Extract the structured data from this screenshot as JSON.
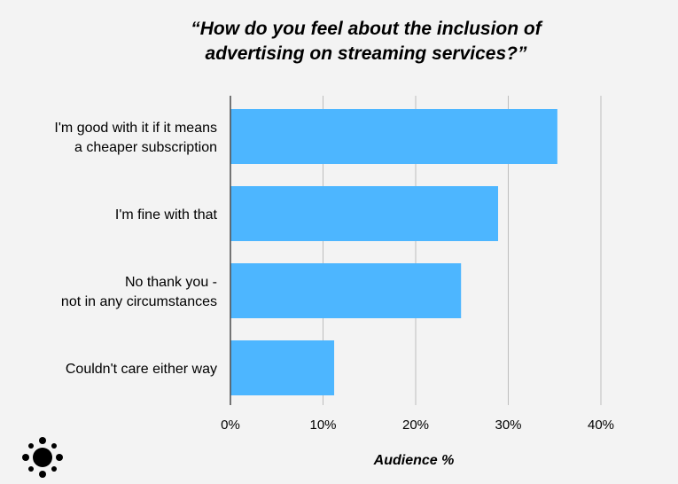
{
  "chart_data": {
    "type": "bar",
    "orientation": "horizontal",
    "title_lines": [
      "“How do you feel about the inclusion of",
      "advertising on streaming services?”"
    ],
    "categories": [
      [
        "I'm good with it if it means",
        "a cheaper subscription"
      ],
      [
        "I'm fine with that"
      ],
      [
        "No thank you -",
        "not in any circumstances"
      ],
      [
        "Couldn't care either way"
      ]
    ],
    "values": [
      35.3,
      28.9,
      24.9,
      11.2
    ],
    "xlabel": "Audience %",
    "xlim": [
      0,
      40
    ],
    "xticks": [
      "0%",
      "10%",
      "20%",
      "30%",
      "40%"
    ],
    "grid": true,
    "bar_color": "#4db6ff",
    "grid_color": "#bdbdbd"
  },
  "logo": {
    "name": "dots-cluster-logo",
    "color": "#000000"
  }
}
